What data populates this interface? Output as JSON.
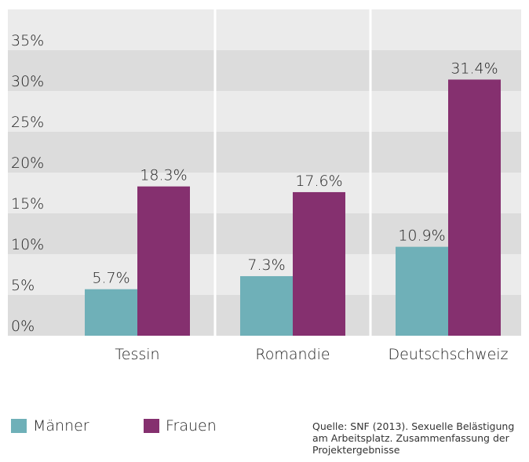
{
  "chart_data": {
    "type": "bar",
    "categories": [
      "Tessin",
      "Romandie",
      "Deutschschweiz"
    ],
    "series": [
      {
        "name": "Männer",
        "color": "#6fb0b8",
        "values": [
          5.7,
          7.3,
          10.9
        ],
        "value_labels": [
          "5.7%",
          "7.3%",
          "10.9%"
        ]
      },
      {
        "name": "Frauen",
        "color": "#85306f",
        "values": [
          18.3,
          17.6,
          31.4
        ],
        "value_labels": [
          "18.3%",
          "17.6%",
          "31.4%"
        ]
      }
    ],
    "ylim": [
      0,
      40
    ],
    "yticks": [
      {
        "value": 0,
        "label": "0%"
      },
      {
        "value": 5,
        "label": "5%"
      },
      {
        "value": 10,
        "label": "10%"
      },
      {
        "value": 15,
        "label": "15%"
      },
      {
        "value": 20,
        "label": "20%"
      },
      {
        "value": 25,
        "label": "25%"
      },
      {
        "value": 30,
        "label": "30%"
      },
      {
        "value": 35,
        "label": "35%"
      }
    ],
    "source": "Quelle: SNF (2013). Sexuelle Belästigung am Arbeitsplatz. Zusammenfassung der Projektergebnisse"
  }
}
